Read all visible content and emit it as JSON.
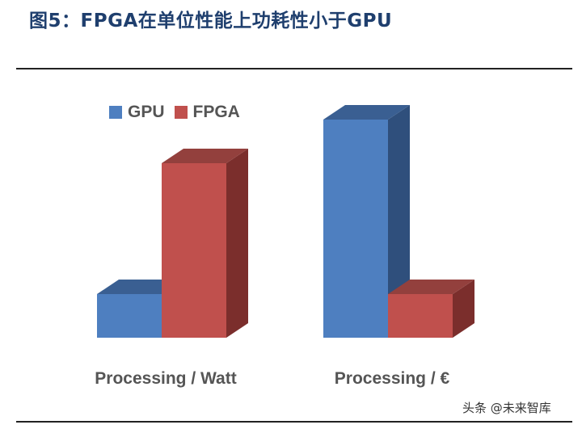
{
  "title": "图5：FPGA在单位性能上功耗性小于GPU",
  "watermark": "头条 @未来智库",
  "colors": {
    "gpu_front": "#4e7fc0",
    "gpu_side": "#2f4f7c",
    "gpu_top": "#3a5f92",
    "fpga_front": "#c0504d",
    "fpga_side": "#7b2e2c",
    "fpga_top": "#93403d",
    "title": "#1f3f6e"
  },
  "chart_data": {
    "type": "bar",
    "title": "",
    "categories": [
      "Processing / Watt",
      "Processing / €"
    ],
    "series": [
      {
        "name": "GPU",
        "values": [
          20,
          100
        ]
      },
      {
        "name": "FPGA",
        "values": [
          80,
          20
        ]
      }
    ],
    "ylim": [
      0,
      100
    ],
    "grid": false,
    "legend": "top-left",
    "three_d": true
  }
}
